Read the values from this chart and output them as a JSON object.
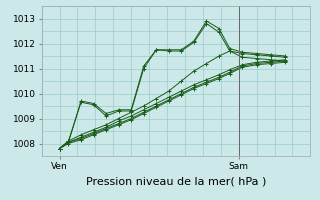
{
  "title": "",
  "xlabel": "Pression niveau de la mer( hPa )",
  "bg_color": "#cce8e8",
  "grid_color": "#99cccc",
  "line_color": "#1a5c1a",
  "marker_color": "#1a5c1a",
  "ylim": [
    1007.5,
    1013.5
  ],
  "xlim": [
    -0.02,
    1.35
  ],
  "series": [
    [
      0.0,
      1007.8,
      0.05,
      1008.1,
      0.12,
      1008.35,
      0.19,
      1008.55,
      0.26,
      1008.75,
      0.33,
      1009.0,
      0.4,
      1009.25,
      0.47,
      1009.5,
      0.54,
      1009.8,
      0.61,
      1010.1,
      0.68,
      1010.5,
      0.75,
      1010.9,
      0.82,
      1011.2,
      0.89,
      1011.5,
      0.95,
      1011.7,
      1.02,
      1011.45,
      1.1,
      1011.4,
      1.18,
      1011.35,
      1.26,
      1011.3
    ],
    [
      0.0,
      1007.8,
      0.05,
      1008.05,
      0.12,
      1008.2,
      0.19,
      1008.4,
      0.26,
      1008.6,
      0.33,
      1008.8,
      0.4,
      1009.0,
      0.47,
      1009.25,
      0.54,
      1009.5,
      0.61,
      1009.75,
      0.68,
      1010.0,
      0.75,
      1010.25,
      0.82,
      1010.45,
      0.89,
      1010.65,
      0.95,
      1010.85,
      1.02,
      1011.1,
      1.1,
      1011.2,
      1.18,
      1011.25,
      1.26,
      1011.3
    ],
    [
      0.0,
      1007.8,
      0.05,
      1008.05,
      0.12,
      1009.7,
      0.19,
      1009.6,
      0.26,
      1009.2,
      0.33,
      1009.35,
      0.4,
      1009.35,
      0.47,
      1011.1,
      0.54,
      1011.75,
      0.61,
      1011.75,
      0.68,
      1011.75,
      0.75,
      1012.1,
      0.82,
      1012.9,
      0.89,
      1012.6,
      0.95,
      1011.8,
      1.02,
      1011.65,
      1.1,
      1011.6,
      1.18,
      1011.55,
      1.26,
      1011.5
    ],
    [
      0.0,
      1007.8,
      0.05,
      1008.1,
      0.12,
      1009.65,
      0.19,
      1009.55,
      0.26,
      1009.1,
      0.33,
      1009.3,
      0.4,
      1009.3,
      0.47,
      1011.0,
      0.54,
      1011.75,
      0.61,
      1011.7,
      0.68,
      1011.7,
      0.75,
      1012.05,
      0.82,
      1012.8,
      0.89,
      1012.45,
      0.95,
      1011.7,
      1.02,
      1011.6,
      1.1,
      1011.55,
      1.18,
      1011.5,
      1.26,
      1011.45
    ],
    [
      0.0,
      1007.8,
      0.05,
      1008.05,
      0.12,
      1008.25,
      0.19,
      1008.45,
      0.26,
      1008.65,
      0.33,
      1008.9,
      0.4,
      1009.1,
      0.47,
      1009.35,
      0.54,
      1009.6,
      0.61,
      1009.85,
      0.68,
      1010.1,
      0.75,
      1010.35,
      0.82,
      1010.55,
      0.89,
      1010.75,
      0.95,
      1010.95,
      1.02,
      1011.15,
      1.1,
      1011.25,
      1.18,
      1011.3,
      1.26,
      1011.35
    ],
    [
      0.0,
      1007.8,
      0.05,
      1008.0,
      0.12,
      1008.15,
      0.19,
      1008.35,
      0.26,
      1008.55,
      0.33,
      1008.75,
      0.4,
      1008.95,
      0.47,
      1009.2,
      0.54,
      1009.45,
      0.61,
      1009.7,
      0.68,
      1009.95,
      0.75,
      1010.2,
      0.82,
      1010.4,
      0.89,
      1010.6,
      0.95,
      1010.8,
      1.02,
      1011.05,
      1.1,
      1011.15,
      1.18,
      1011.2,
      1.26,
      1011.25
    ]
  ],
  "xtick_labels": [
    "Ven",
    "Sam"
  ],
  "xtick_positions": [
    0.0,
    1.0
  ],
  "ytick_labels": [
    "1008",
    "1009",
    "1010",
    "1011",
    "1012",
    "1013"
  ],
  "ytick_values": [
    1008,
    1009,
    1010,
    1011,
    1012,
    1013
  ],
  "xlabel_fontsize": 8,
  "tick_fontsize": 6.5,
  "vline_x": 1.0
}
